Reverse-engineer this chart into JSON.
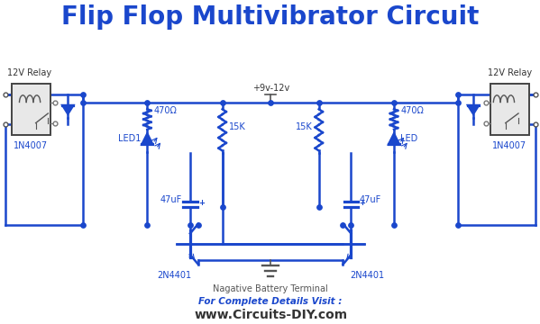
{
  "title": "Flip Flop Multivibrator Circuit",
  "title_color": "#1a47cc",
  "title_fontsize": 20,
  "bg_color": "#ffffff",
  "circuit_color": "#1a47cc",
  "circuit_lw": 1.8,
  "footer_line1": "For Complete Details Visit :",
  "footer_line2": "www.Circuits-DIY.com",
  "footer_color1": "#1a47cc",
  "footer_color2": "#333333",
  "label_color": "#1a47cc",
  "label_fontsize": 7,
  "vcc_label": "+9v-12v",
  "gnd_label": "Nagative Battery Terminal",
  "relay_label_left": "12V Relay",
  "relay_label_right": "12V Relay",
  "diode_label_left": "1N4007",
  "diode_label_right": "1N4007",
  "led_label_left": "LED1",
  "led_label_right": "LED",
  "r1_label": "470Ω",
  "r2_label": "470Ω",
  "r3_label": "15K",
  "r4_label": "15K",
  "c1_label": "47uF",
  "c2_label": "47uF",
  "t1_label": "2N4401",
  "t2_label": "2N4401"
}
